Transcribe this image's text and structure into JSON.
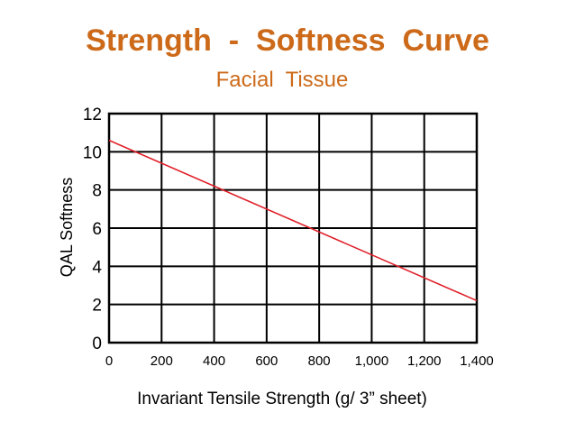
{
  "chart_data": {
    "type": "line",
    "title": "Strength  -  Softness  Curve",
    "subtitle": "Facial  Tissue",
    "xlabel": "Invariant  Tensile  Strength  (g/ 3” sheet)",
    "ylabel": "QAL Softness",
    "xlim": [
      0,
      1400
    ],
    "ylim": [
      0,
      12
    ],
    "x_ticks": [
      0,
      200,
      400,
      600,
      800,
      1000,
      1200,
      1400
    ],
    "x_tick_labels": [
      "0",
      "200",
      "400",
      "600",
      "800",
      "1,000",
      "1,200",
      "1,400"
    ],
    "y_ticks": [
      0,
      2,
      4,
      6,
      8,
      10,
      12
    ],
    "y_tick_labels": [
      "0",
      "2",
      "4",
      "6",
      "8",
      "10",
      "12"
    ],
    "grid": true,
    "series": [
      {
        "x": [
          0,
          1400
        ],
        "y": [
          10.6,
          2.2
        ],
        "color": "#e0202a"
      }
    ]
  }
}
